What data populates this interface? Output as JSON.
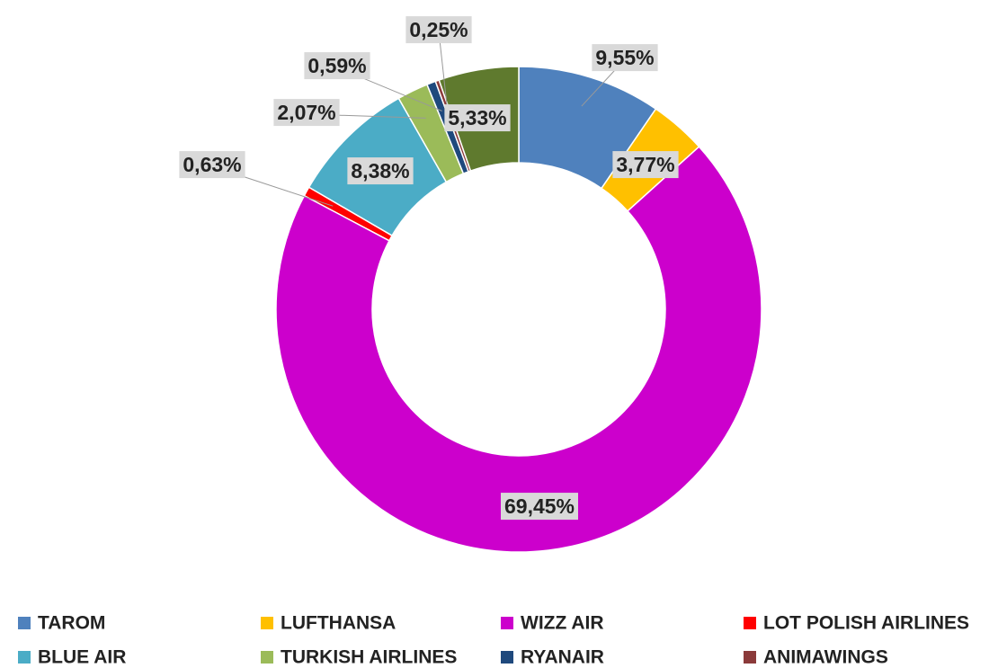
{
  "chart_data": {
    "type": "donut",
    "categories": [
      "TAROM",
      "LUFTHANSA",
      "WIZZ AIR",
      "LOT POLISH AIRLINES",
      "BLUE AIR",
      "TURKISH AIRLINES",
      "RYANAIR",
      "ANIMAWINGS",
      null
    ],
    "values": [
      9.55,
      3.77,
      69.45,
      0.63,
      8.38,
      2.07,
      0.59,
      0.25,
      5.33
    ],
    "value_labels": [
      "9,55%",
      "3,77%",
      "69,45%",
      "0,63%",
      "8,38%",
      "2,07%",
      "0,59%",
      "0,25%",
      "5,33%"
    ],
    "colors": [
      "#4f81bd",
      "#ffc000",
      "#cc00cc",
      "#ff0000",
      "#4bacc6",
      "#9bbb59",
      "#1f497d",
      "#8b3a3a",
      "#5f7a2e"
    ],
    "legend": "bottom"
  }
}
